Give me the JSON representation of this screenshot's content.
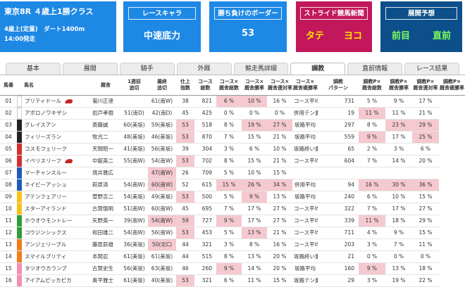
{
  "race": {
    "title": "東京8R ４歳上1勝クラス",
    "conditions": "4歳上(定量)　ダート1400m",
    "start_time": "14:00発走"
  },
  "cards": {
    "race_character": {
      "title": "レースキャラ",
      "value": "中速底力"
    },
    "winning_border": {
      "title": "勝ち負けのボーダー",
      "value": "53"
    },
    "stride": {
      "title": "ストライド競馬新聞",
      "left": "タテ",
      "right": "ヨコ"
    },
    "forecast": {
      "title": "展開予想",
      "left": "前目",
      "right": "直前"
    }
  },
  "colors": {
    "blue": "#1e88e5",
    "red": "#c2185b",
    "navy": "#0d4f8b",
    "highlight": "#f4c9d0"
  },
  "tabs": [
    "基本",
    "展開",
    "騎手",
    "外厩",
    "競走馬詳細",
    "調教",
    "直前情報",
    "レース結果"
  ],
  "active_tab": "調教",
  "columns": [
    "馬番",
    "",
    "馬名",
    "厩舎",
    "1週前\n追切",
    "最終\n追切",
    "仕上\n指数",
    "コース\n総数",
    "コース×\n厩舎総数",
    "コース×\n厩舎勝率",
    "コース×\n厩舎連対率",
    "コース×\n厩舎複勝率",
    "調教\nパターン",
    "調教P×\n厩舎総数",
    "調教P×\n厩舎勝率",
    "調教P×\n厩舎連対率",
    "調教P×\n厩舎複勝率"
  ],
  "rows": [
    {
      "no": "01",
      "color": "#ffffff",
      "name": "プリティドール",
      "hat": true,
      "stable": "菊川正達",
      "w1": "",
      "w0": "61(南W)",
      "fin": "38",
      "cnt": "821",
      "stc": "6",
      "win": "6 %",
      "ren": "10 %",
      "fuku": "16 %",
      "pat": "コース平均",
      "pc": "731",
      "pw": "5 %",
      "pr": "9 %",
      "pf": "17 %",
      "hl": [
        "win",
        "ren"
      ]
    },
    {
      "no": "02",
      "color": "#ffffff",
      "name": "アポロノワキザシ",
      "hat": false,
      "stable": "岩戸孝樹",
      "w1": "51(南D)",
      "w0": "42(南D)",
      "fin": "45",
      "cnt": "425",
      "stc": "0",
      "win": "0 %",
      "ren": "0 %",
      "fuku": "0 %",
      "pat": "併用テン重点",
      "pc": "19",
      "pw": "11 %",
      "pr": "11 %",
      "pf": "21 %",
      "hl": [
        "pw"
      ]
    },
    {
      "no": "03",
      "color": "#222222",
      "name": "グレイスアン",
      "hat": false,
      "stable": "斎藤誠",
      "w1": "60(美坂)",
      "w0": "59(美坂)",
      "fin": "53",
      "cnt": "518",
      "stc": "8",
      "win": "8 %",
      "ren": "19 %",
      "fuku": "27 %",
      "pat": "坂路平均",
      "pc": "297",
      "pw": "8 %",
      "pr": "23 %",
      "pf": "29 %",
      "hl": [
        "fin",
        "ren",
        "fuku",
        "pr",
        "pf"
      ]
    },
    {
      "no": "04",
      "color": "#222222",
      "name": "フィリーズラン",
      "hat": false,
      "stable": "牧光二",
      "w1": "48(美坂)",
      "w0": "46(美坂)",
      "fin": "53",
      "cnt": "870",
      "stc": "7",
      "win": "7 %",
      "ren": "15 %",
      "fuku": "21 %",
      "pat": "坂路平均",
      "pc": "559",
      "pw": "9 %",
      "pr": "17 %",
      "pf": "25 %",
      "hl": [
        "fin",
        "pw",
        "pf"
      ]
    },
    {
      "no": "05",
      "color": "#d32f2f",
      "name": "コスモフェリーク",
      "hat": false,
      "stable": "天間昭一",
      "w1": "41(美坂)",
      "w0": "56(美坂)",
      "fin": "39",
      "cnt": "304",
      "stc": "3",
      "win": "3 %",
      "ren": "6 %",
      "fuku": "10 %",
      "pat": "坂路終い重点",
      "pc": "65",
      "pw": "2 %",
      "pr": "3 %",
      "pf": "6 %",
      "hl": []
    },
    {
      "no": "06",
      "color": "#d32f2f",
      "name": "イベリスリーフ",
      "hat": true,
      "stable": "中舘英二",
      "w1": "55(南W)",
      "w0": "54(南W)",
      "fin": "53",
      "cnt": "702",
      "stc": "8",
      "win": "8 %",
      "ren": "15 %",
      "fuku": "21 %",
      "pat": "コース平均",
      "pc": "604",
      "pw": "7 %",
      "pr": "14 %",
      "pf": "20 %",
      "hl": [
        "fin"
      ]
    },
    {
      "no": "07",
      "color": "#1e5bb8",
      "name": "マーチャンスルー",
      "hat": false,
      "stable": "境井雅広",
      "w1": "",
      "w0": "47(南W)",
      "fin": "26",
      "cnt": "709",
      "stc": "5",
      "win": "5 %",
      "ren": "10 %",
      "fuku": "15 %",
      "pat": "",
      "pc": "",
      "pw": "",
      "pr": "",
      "pf": "",
      "hl": [
        "w0"
      ]
    },
    {
      "no": "08",
      "color": "#1e5bb8",
      "name": "ネイビーアッシュ",
      "hat": false,
      "stable": "萩原清",
      "w1": "54(南W)",
      "w0": "60(南W)",
      "fin": "52",
      "cnt": "615",
      "stc": "15",
      "win": "15 %",
      "ren": "26 %",
      "fuku": "34 %",
      "pat": "併用平均",
      "pc": "94",
      "pw": "16 %",
      "pr": "30 %",
      "pf": "36 %",
      "hl": [
        "w0",
        "win",
        "ren",
        "fuku",
        "pw",
        "pr",
        "pf"
      ]
    },
    {
      "no": "09",
      "color": "#f6c21a",
      "name": "アテンフェアリー",
      "hat": false,
      "stable": "菅野吉二",
      "w1": "54(美坂)",
      "w0": "49(美坂)",
      "fin": "53",
      "cnt": "500",
      "stc": "5",
      "win": "5 %",
      "ren": "9 %",
      "fuku": "13 %",
      "pat": "坂路平均",
      "pc": "240",
      "pw": "6 %",
      "pr": "10 %",
      "pf": "15 %",
      "hl": [
        "fin",
        "ren"
      ]
    },
    {
      "no": "10",
      "color": "#f6c21a",
      "name": "スターアイランド",
      "hat": false,
      "stable": "古賀慎明",
      "w1": "51(南W)",
      "w0": "60(南W)",
      "fin": "45",
      "cnt": "695",
      "stc": "7",
      "win": "7 %",
      "ren": "17 %",
      "fuku": "27 %",
      "pat": "コース平均",
      "pc": "322",
      "pw": "7 %",
      "pr": "17 %",
      "pf": "27 %",
      "hl": []
    },
    {
      "no": "11",
      "color": "#2e9c3a",
      "name": "ホウオウモントレー",
      "hat": false,
      "stable": "矢野英一",
      "w1": "39(南W)",
      "w0": "54(南W)",
      "fin": "59",
      "cnt": "727",
      "stc": "9",
      "win": "9 %",
      "ren": "17 %",
      "fuku": "27 %",
      "pat": "コース平均",
      "pc": "339",
      "pw": "11 %",
      "pr": "18 %",
      "pf": "29 %",
      "hl": [
        "w0",
        "fin",
        "win",
        "pw"
      ]
    },
    {
      "no": "12",
      "color": "#2e9c3a",
      "name": "コウジンシックス",
      "hat": false,
      "stable": "和田雄二",
      "w1": "54(南W)",
      "w0": "56(南W)",
      "fin": "53",
      "cnt": "453",
      "stc": "5",
      "win": "5 %",
      "ren": "13 %",
      "fuku": "21 %",
      "pat": "コース平均",
      "pc": "711",
      "pw": "4 %",
      "pr": "9 %",
      "pf": "15 %",
      "hl": [
        "fin",
        "ren"
      ]
    },
    {
      "no": "13",
      "color": "#ef7d1a",
      "name": "アンジェリーブル",
      "hat": false,
      "stable": "藤原辰雄",
      "w1": "36(美坂)",
      "w0": "50(北C)",
      "fin": "44",
      "cnt": "321",
      "stc": "3",
      "win": "3 %",
      "ren": "8 %",
      "fuku": "16 %",
      "pat": "コース平均",
      "pc": "203",
      "pw": "3 %",
      "pr": "7 %",
      "pf": "11 %",
      "hl": [
        "w0"
      ]
    },
    {
      "no": "14",
      "color": "#ef7d1a",
      "name": "スマイルプリティ",
      "hat": false,
      "stable": "本間忍",
      "w1": "61(美坂)",
      "w0": "61(美坂)",
      "fin": "44",
      "cnt": "515",
      "stc": "8",
      "win": "8 %",
      "ren": "13 %",
      "fuku": "20 %",
      "pat": "坂路終い重点",
      "pc": "21",
      "pw": "0 %",
      "pr": "0 %",
      "pf": "0 %",
      "hl": []
    },
    {
      "no": "15",
      "color": "#f48fb1",
      "name": "タツオウカランブ",
      "hat": false,
      "stable": "古賀史生",
      "w1": "56(美坂)",
      "w0": "63(美坂)",
      "fin": "46",
      "cnt": "260",
      "stc": "9",
      "win": "9 %",
      "ren": "14 %",
      "fuku": "20 %",
      "pat": "坂路平均",
      "pc": "160",
      "pw": "9 %",
      "pr": "13 %",
      "pf": "18 %",
      "hl": [
        "win",
        "pw"
      ]
    },
    {
      "no": "16",
      "color": "#f48fb1",
      "name": "アイアムピッカピカ",
      "hat": false,
      "stable": "奥平雅士",
      "w1": "61(美坂)",
      "w0": "40(美坂)",
      "fin": "53",
      "cnt": "321",
      "stc": "6",
      "win": "6 %",
      "ren": "11 %",
      "fuku": "15 %",
      "pat": "坂路テン重点",
      "pc": "29",
      "pw": "3 %",
      "pr": "19 %",
      "pf": "22 %",
      "hl": [
        "fin"
      ]
    }
  ]
}
